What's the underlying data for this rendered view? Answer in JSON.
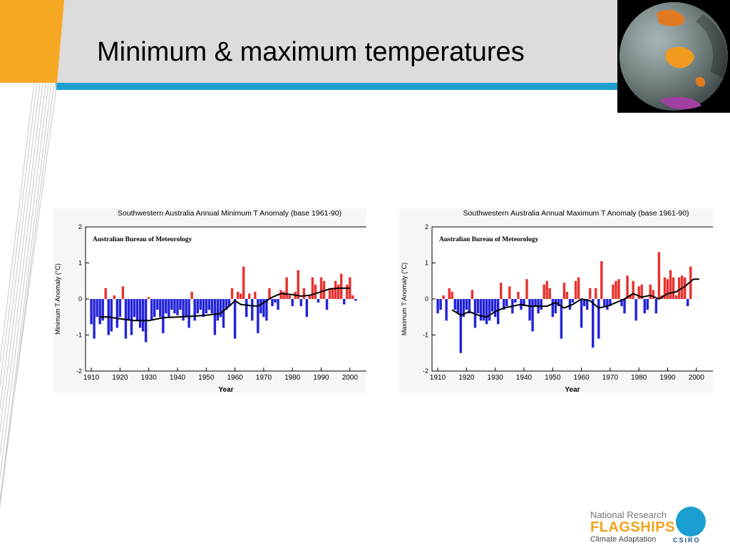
{
  "slide": {
    "title": "Minimum & maximum temperatures"
  },
  "colors": {
    "accent_orange": "#f7a823",
    "accent_blue": "#1a9fd0",
    "bar_positive": "#e8322e",
    "bar_negative": "#2323d8",
    "trend_line": "#000000"
  },
  "logo": {
    "line1": "National Research",
    "line2": "FLAGSHIPS",
    "line3": "Climate Adaptation",
    "badge": "CSIRO"
  },
  "chart_data": [
    {
      "type": "bar",
      "title": "Southwestern Australia Annual Minimum T Anomaly (base 1961-90)",
      "source_label": "Australian Bureau of Meteorology",
      "xlabel": "Year",
      "ylabel": "Minimum T Anomaly (°C)",
      "xlim": [
        1908,
        2006
      ],
      "ylim": [
        -2,
        2
      ],
      "xticks": [
        1910,
        1920,
        1930,
        1940,
        1950,
        1960,
        1970,
        1980,
        1990,
        2000
      ],
      "yticks": [
        -2,
        -1,
        0,
        1,
        2
      ],
      "grid": false,
      "x_start": 1910,
      "values": [
        -0.7,
        -1.1,
        -0.5,
        -0.7,
        -0.6,
        0.3,
        -1.0,
        -0.9,
        0.1,
        -0.8,
        -0.5,
        0.35,
        -1.1,
        -0.6,
        -1.0,
        -0.5,
        -0.6,
        -0.8,
        -0.9,
        -1.2,
        0.05,
        -0.6,
        -0.5,
        -0.3,
        -0.5,
        -0.95,
        -0.4,
        -0.5,
        -0.3,
        -0.4,
        -0.45,
        -0.3,
        -0.6,
        -0.5,
        -0.8,
        0.2,
        -0.6,
        -0.4,
        -0.3,
        -0.5,
        -0.4,
        -0.3,
        -0.4,
        -1.0,
        -0.6,
        -0.5,
        -0.8,
        -0.3,
        -0.2,
        0.3,
        -1.1,
        0.2,
        0.15,
        0.9,
        -0.5,
        0.15,
        -0.6,
        0.2,
        -0.95,
        -0.4,
        -0.5,
        -0.6,
        0.3,
        -0.2,
        -0.1,
        -0.3,
        0.25,
        0.2,
        0.6,
        0.1,
        -0.2,
        0.2,
        0.8,
        -0.2,
        0.3,
        -0.5,
        0.1,
        0.6,
        0.4,
        -0.1,
        0.6,
        0.5,
        -0.3,
        0.3,
        0.3,
        0.5,
        0.4,
        0.7,
        -0.15,
        0.4,
        0.6,
        0.1,
        -0.05
      ],
      "trend": [
        [
          1913,
          -0.5
        ],
        [
          1916,
          -0.5
        ],
        [
          1920,
          -0.55
        ],
        [
          1925,
          -0.6
        ],
        [
          1930,
          -0.6
        ],
        [
          1935,
          -0.52
        ],
        [
          1940,
          -0.5
        ],
        [
          1945,
          -0.48
        ],
        [
          1950,
          -0.45
        ],
        [
          1955,
          -0.4
        ],
        [
          1958,
          -0.2
        ],
        [
          1960,
          -0.05
        ],
        [
          1962,
          -0.15
        ],
        [
          1965,
          -0.18
        ],
        [
          1968,
          -0.2
        ],
        [
          1970,
          -0.1
        ],
        [
          1973,
          0.05
        ],
        [
          1976,
          0.15
        ],
        [
          1980,
          0.12
        ],
        [
          1983,
          0.08
        ],
        [
          1986,
          0.1
        ],
        [
          1990,
          0.2
        ],
        [
          1993,
          0.28
        ],
        [
          1996,
          0.3
        ],
        [
          2000,
          0.3
        ]
      ]
    },
    {
      "type": "bar",
      "title": "Southwestern Australia Annual Maximum T Anomaly (base 1961-90)",
      "source_label": "Australian Bureau of Meteorology",
      "xlabel": "Year",
      "ylabel": "Maximum T Anomaly (°C)",
      "xlim": [
        1908,
        2006
      ],
      "ylim": [
        -2,
        2
      ],
      "xticks": [
        1910,
        1920,
        1930,
        1940,
        1950,
        1960,
        1970,
        1980,
        1990,
        2000
      ],
      "yticks": [
        -2,
        -1,
        0,
        1,
        2
      ],
      "grid": false,
      "x_start": 1910,
      "values": [
        -0.4,
        -0.3,
        0.1,
        -0.6,
        0.3,
        0.2,
        -0.3,
        -0.4,
        -1.5,
        -0.5,
        -0.3,
        -0.4,
        0.25,
        -0.8,
        -0.4,
        -0.6,
        -0.6,
        -0.7,
        -0.6,
        -0.35,
        -0.5,
        -0.7,
        0.45,
        -0.3,
        -0.2,
        0.35,
        -0.4,
        -0.1,
        0.2,
        -0.3,
        -0.2,
        0.55,
        -0.6,
        -0.9,
        -0.2,
        -0.4,
        -0.3,
        0.4,
        0.5,
        0.3,
        -0.5,
        -0.4,
        -0.2,
        -1.1,
        0.45,
        0.2,
        -0.3,
        -0.1,
        0.5,
        0.6,
        -0.8,
        -0.2,
        -0.3,
        0.3,
        -1.35,
        0.3,
        -1.1,
        1.05,
        -0.2,
        -0.3,
        -0.2,
        0.4,
        0.5,
        0.55,
        -0.2,
        -0.4,
        0.65,
        0.1,
        0.5,
        -0.6,
        0.35,
        0.4,
        -0.4,
        -0.3,
        0.4,
        0.25,
        -0.4,
        1.3,
        0.1,
        0.6,
        0.55,
        0.8,
        0.6,
        0.1,
        0.6,
        0.65,
        0.6,
        -0.2,
        0.9
      ],
      "trend": [
        [
          1915,
          -0.3
        ],
        [
          1918,
          -0.45
        ],
        [
          1921,
          -0.35
        ],
        [
          1924,
          -0.45
        ],
        [
          1927,
          -0.5
        ],
        [
          1930,
          -0.35
        ],
        [
          1933,
          -0.25
        ],
        [
          1936,
          -0.2
        ],
        [
          1939,
          -0.15
        ],
        [
          1942,
          -0.2
        ],
        [
          1945,
          -0.2
        ],
        [
          1948,
          -0.2
        ],
        [
          1951,
          -0.1
        ],
        [
          1954,
          -0.25
        ],
        [
          1957,
          -0.15
        ],
        [
          1960,
          0.0
        ],
        [
          1963,
          -0.05
        ],
        [
          1966,
          -0.25
        ],
        [
          1969,
          -0.2
        ],
        [
          1972,
          -0.1
        ],
        [
          1975,
          0.0
        ],
        [
          1978,
          0.15
        ],
        [
          1981,
          0.05
        ],
        [
          1984,
          0.1
        ],
        [
          1987,
          0.0
        ],
        [
          1990,
          0.15
        ],
        [
          1993,
          0.2
        ],
        [
          1996,
          0.35
        ],
        [
          1999,
          0.55
        ],
        [
          2001,
          0.55
        ]
      ]
    }
  ]
}
